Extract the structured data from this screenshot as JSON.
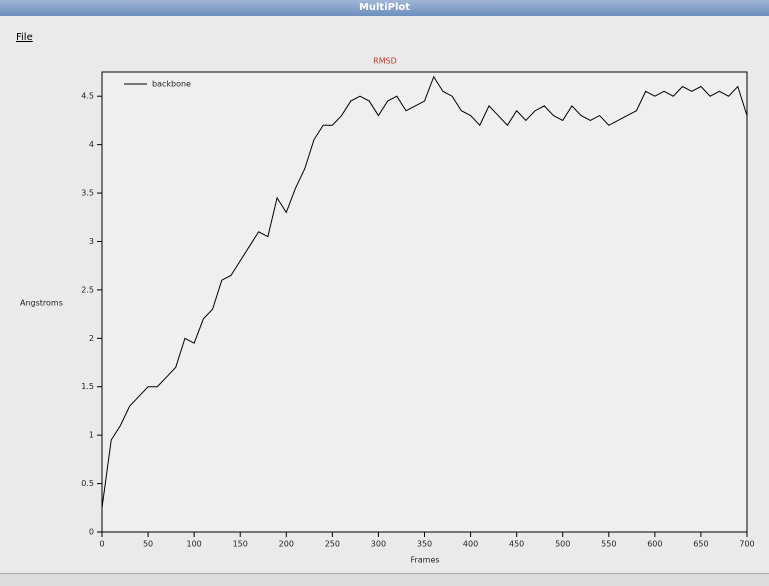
{
  "window": {
    "title": "MultiPlot",
    "menu": [
      "File"
    ]
  },
  "chart_data": {
    "type": "line",
    "title": "RMSD",
    "x_label": "Frames",
    "y_label": "Angstroms",
    "x": [
      0,
      10,
      20,
      30,
      40,
      50,
      60,
      70,
      80,
      90,
      100,
      110,
      120,
      130,
      140,
      150,
      160,
      170,
      180,
      190,
      200,
      210,
      220,
      230,
      240,
      250,
      260,
      270,
      280,
      290,
      300,
      310,
      320,
      330,
      340,
      350,
      360,
      370,
      380,
      390,
      400,
      410,
      420,
      430,
      440,
      450,
      460,
      470,
      480,
      490,
      500,
      510,
      520,
      530,
      540,
      550,
      560,
      570,
      580,
      590,
      600,
      610,
      620,
      630,
      640,
      650,
      660,
      670,
      680,
      690,
      700
    ],
    "series": [
      {
        "name": "backbone",
        "color": "#000000",
        "values": [
          0.25,
          0.95,
          1.1,
          1.3,
          1.4,
          1.5,
          1.5,
          1.6,
          1.7,
          2.0,
          1.95,
          2.2,
          2.3,
          2.6,
          2.65,
          2.8,
          2.95,
          3.1,
          3.05,
          3.45,
          3.3,
          3.55,
          3.75,
          4.05,
          4.2,
          4.2,
          4.3,
          4.45,
          4.5,
          4.45,
          4.3,
          4.45,
          4.5,
          4.35,
          4.4,
          4.45,
          4.7,
          4.55,
          4.5,
          4.35,
          4.3,
          4.2,
          4.4,
          4.3,
          4.2,
          4.35,
          4.25,
          4.35,
          4.4,
          4.3,
          4.25,
          4.4,
          4.3,
          4.25,
          4.3,
          4.2,
          4.25,
          4.3,
          4.35,
          4.55,
          4.5,
          4.55,
          4.5,
          4.6,
          4.55,
          4.6,
          4.5,
          4.55,
          4.5,
          4.6,
          4.3
        ]
      }
    ],
    "xlim": [
      0,
      700
    ],
    "ylim": [
      0,
      4.75
    ],
    "xticks": [
      0,
      50,
      100,
      150,
      200,
      250,
      300,
      350,
      400,
      450,
      500,
      550,
      600,
      650,
      700
    ],
    "yticks": [
      0,
      0.5,
      1,
      1.5,
      2,
      2.5,
      3,
      3.5,
      4,
      4.5
    ],
    "legend": "top-left",
    "grid": false
  }
}
